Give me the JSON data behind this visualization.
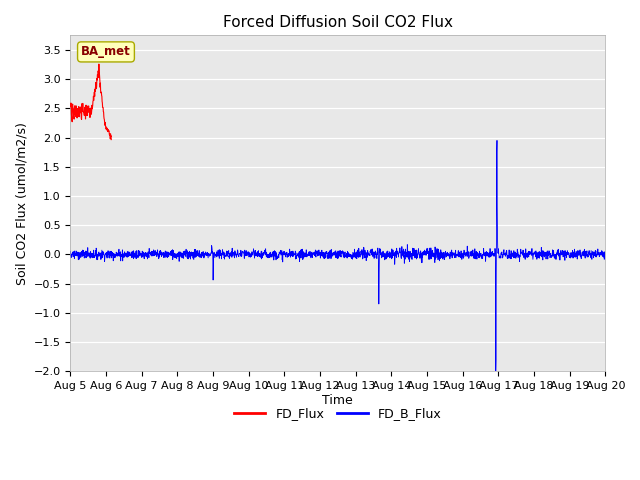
{
  "title": "Forced Diffusion Soil CO2 Flux",
  "xlabel": "Time",
  "ylabel": "Soil CO2 Flux (umol/m2/s)",
  "ylim": [
    -2.0,
    3.75
  ],
  "ylim_display": [
    -2.0,
    3.5
  ],
  "site_label": "BA_met",
  "legend_entries": [
    "FD_Flux",
    "FD_B_Flux"
  ],
  "fd_color": "#ff0000",
  "fd_b_color": "#0000ff",
  "plot_bg_color": "#e8e8e8",
  "fig_bg_color": "#ffffff",
  "grid_color": "#ffffff",
  "x_tick_labels": [
    "Aug 5",
    "Aug 6",
    "Aug 7",
    "Aug 8",
    "Aug 9",
    "Aug 10",
    "Aug 11",
    "Aug 12",
    "Aug 13",
    "Aug 14",
    "Aug 15",
    "Aug 16",
    "Aug 17",
    "Aug 18",
    "Aug 19",
    "Aug 20"
  ],
  "num_days": 15,
  "points_per_day": 144,
  "noise_scale": 0.04,
  "title_fontsize": 11,
  "label_fontsize": 9,
  "tick_fontsize": 8
}
